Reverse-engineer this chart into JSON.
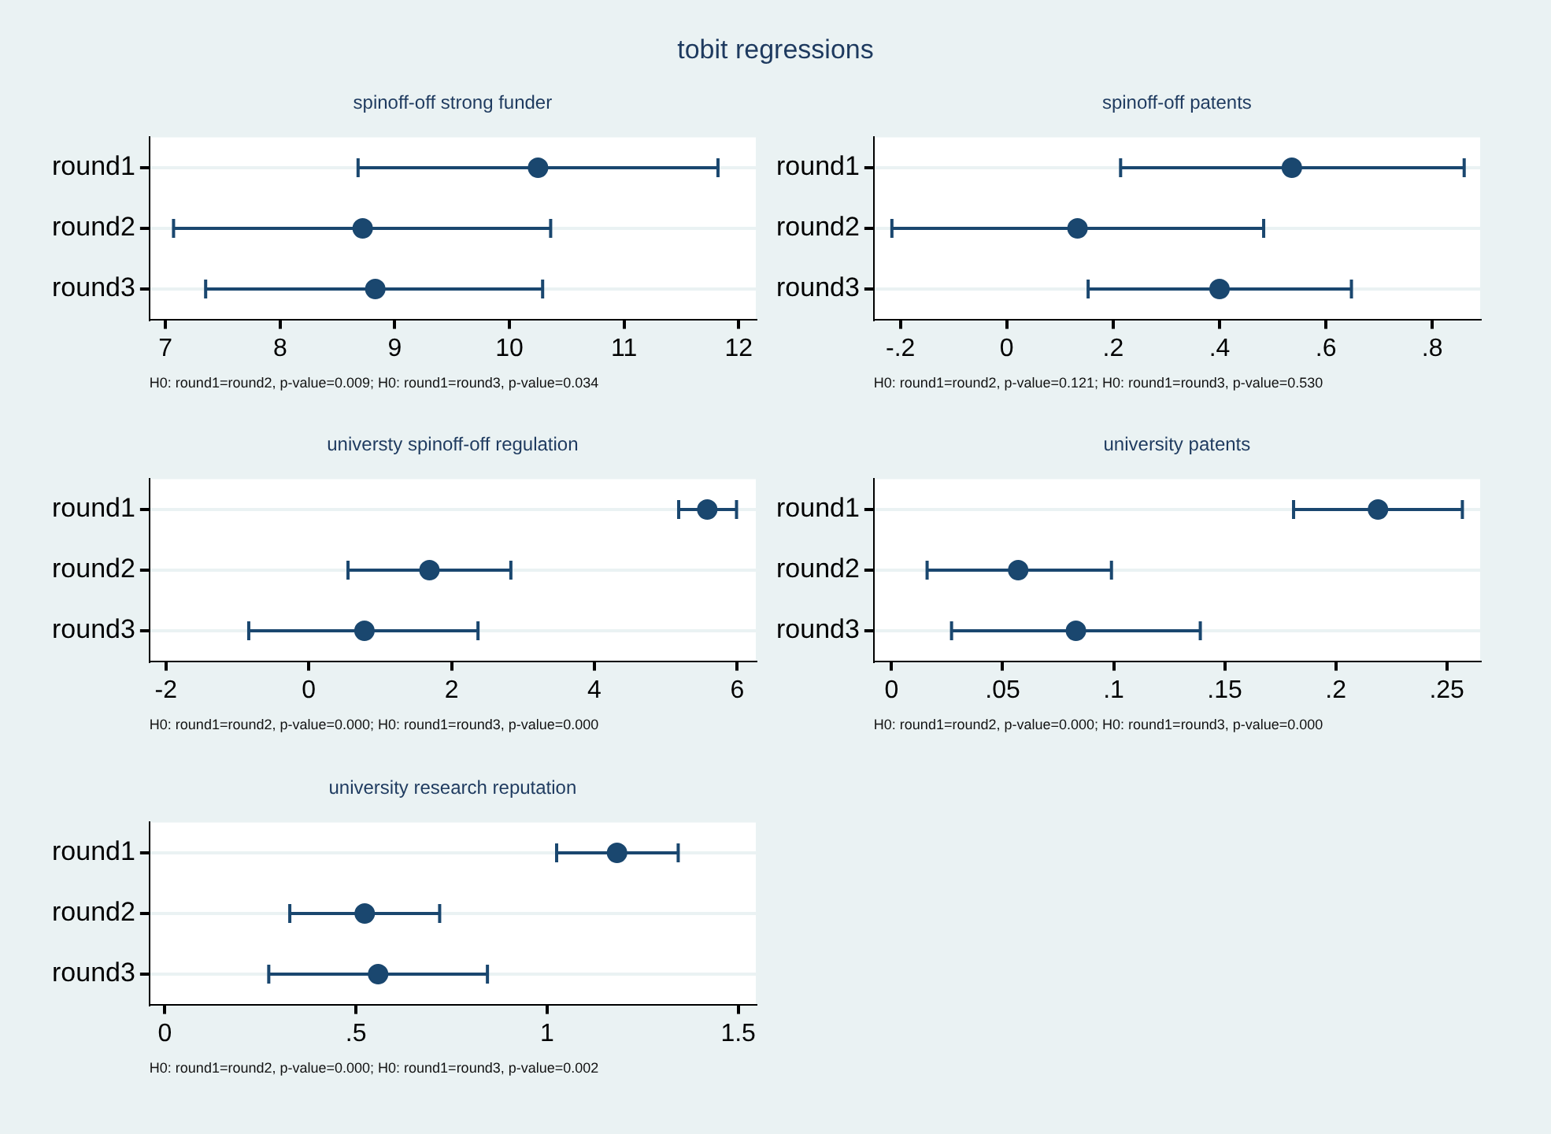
{
  "chart_data": [
    {
      "type": "scatter",
      "orientation": "horizontal",
      "title": "tobit regressions",
      "subtitle": "spinoff-off strong funder",
      "categories": [
        "round1",
        "round2",
        "round3"
      ],
      "color": "#1a476f",
      "marker": "circle",
      "grid": "y",
      "values": [
        10.25,
        8.72,
        8.83
      ],
      "errors": [
        [
          8.68,
          11.82
        ],
        [
          7.07,
          10.36
        ],
        [
          7.35,
          10.29
        ]
      ],
      "xlim": [
        6.86,
        12.15
      ],
      "xticks": [
        7,
        8,
        9,
        10,
        11,
        12
      ],
      "annotations": [
        "H0: round1=round2, p-value=0.009; H0: round1=round3, p-value=0.034"
      ]
    },
    {
      "type": "scatter",
      "orientation": "horizontal",
      "subtitle": "spinoff-off patents",
      "categories": [
        "round1",
        "round2",
        "round3"
      ],
      "color": "#1a476f",
      "marker": "circle",
      "grid": "y",
      "values": [
        0.536,
        0.133,
        0.4
      ],
      "errors": [
        [
          0.214,
          0.86
        ],
        [
          -0.216,
          0.483
        ],
        [
          0.153,
          0.648
        ]
      ],
      "xlim": [
        -0.25,
        0.89
      ],
      "xticks": [
        {
          "value": -0.2,
          "label": "-.2"
        },
        0,
        {
          "value": 0.2,
          "label": ".2"
        },
        {
          "value": 0.4,
          "label": ".4"
        },
        {
          "value": 0.6,
          "label": ".6"
        },
        {
          "value": 0.8,
          "label": ".8"
        }
      ],
      "annotations": [
        "H0: round1=round2, p-value=0.121; H0: round1=round3, p-value=0.530"
      ]
    },
    {
      "type": "scatter",
      "orientation": "horizontal",
      "subtitle": "universty spinoff-off regulation",
      "categories": [
        "round1",
        "round2",
        "round3"
      ],
      "color": "#1a476f",
      "marker": "circle",
      "grid": "y",
      "values": [
        5.58,
        1.69,
        0.78
      ],
      "errors": [
        [
          5.18,
          5.99
        ],
        [
          0.55,
          2.83
        ],
        [
          -0.84,
          2.37
        ]
      ],
      "xlim": [
        -2.23,
        6.26
      ],
      "xticks": [
        -2,
        0,
        2,
        4,
        6
      ],
      "annotations": [
        "H0: round1=round2, p-value=0.000; H0: round1=round3, p-value=0.000"
      ]
    },
    {
      "type": "scatter",
      "orientation": "horizontal",
      "subtitle": "university patents",
      "categories": [
        "round1",
        "round2",
        "round3"
      ],
      "color": "#1a476f",
      "marker": "circle",
      "grid": "y",
      "values": [
        0.219,
        0.057,
        0.083
      ],
      "errors": [
        [
          0.181,
          0.257
        ],
        [
          0.016,
          0.099
        ],
        [
          0.027,
          0.139
        ]
      ],
      "xlim": [
        -0.008,
        0.265
      ],
      "xticks": [
        0,
        {
          "value": 0.05,
          "label": ".05"
        },
        {
          "value": 0.1,
          "label": ".1"
        },
        {
          "value": 0.15,
          "label": ".15"
        },
        {
          "value": 0.2,
          "label": ".2"
        },
        {
          "value": 0.25,
          "label": ".25"
        }
      ],
      "annotations": [
        "H0: round1=round2, p-value=0.000; H0: round1=round3, p-value=0.000"
      ]
    },
    {
      "type": "scatter",
      "orientation": "horizontal",
      "subtitle": "university research reputation",
      "categories": [
        "round1",
        "round2",
        "round3"
      ],
      "color": "#1a476f",
      "marker": "circle",
      "grid": "y",
      "values": [
        1.183,
        0.523,
        0.558
      ],
      "errors": [
        [
          1.025,
          1.343
        ],
        [
          0.327,
          0.719
        ],
        [
          0.272,
          0.844
        ]
      ],
      "xlim": [
        -0.04,
        1.546
      ],
      "xticks": [
        0,
        {
          "value": 0.5,
          "label": ".5"
        },
        1,
        1.5
      ],
      "annotations": [
        "H0: round1=round2, p-value=0.000; H0: round1=round3, p-value=0.002"
      ]
    }
  ]
}
